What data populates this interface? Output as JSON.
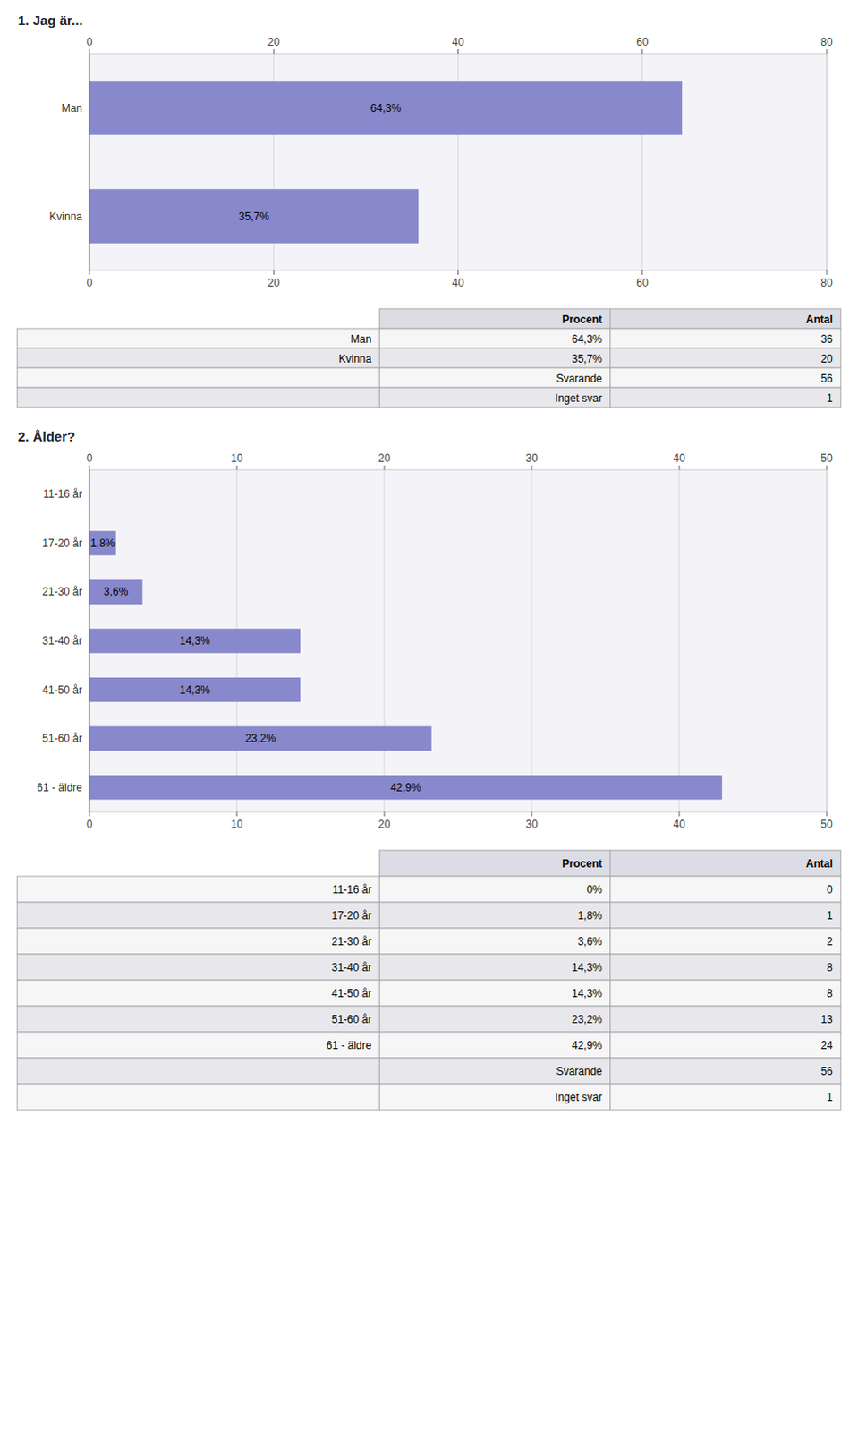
{
  "chart_data": [
    {
      "type": "bar",
      "orientation": "horizontal",
      "title": "1. Jag är...",
      "categories": [
        "Man",
        "Kvinna"
      ],
      "values": [
        64.3,
        35.7
      ],
      "value_labels": [
        "64,3%",
        "35,7%"
      ],
      "data_labels": true,
      "color": "#8888cc",
      "xlim": [
        0,
        80
      ],
      "xticks": [
        0,
        20,
        40,
        60,
        80
      ],
      "grid": true
    },
    {
      "type": "table",
      "columns": [
        "Procent",
        "Antal"
      ],
      "rows": [
        [
          "Man",
          "64,3%",
          "36"
        ],
        [
          "Kvinna",
          "35,7%",
          "20"
        ],
        [
          null,
          "Svarande",
          "56"
        ],
        [
          null,
          "Inget svar",
          "1"
        ]
      ]
    },
    {
      "type": "bar",
      "orientation": "horizontal",
      "title": "2. Ålder?",
      "categories": [
        "11-16 år",
        "17-20 år",
        "21-30 år",
        "31-40 år",
        "41-50 år",
        "51-60 år",
        "61 - äldre"
      ],
      "values": [
        0.0,
        1.8,
        3.6,
        14.3,
        14.3,
        23.2,
        42.9
      ],
      "value_labels": [
        null,
        "1,8%",
        "3,6%",
        "14,3%",
        "14,3%",
        "23,2%",
        "42,9%"
      ],
      "data_labels": true,
      "color": "#8888cc",
      "xlim": [
        0,
        50
      ],
      "xticks": [
        0,
        10,
        20,
        30,
        40,
        50
      ],
      "grid": true
    },
    {
      "type": "table",
      "columns": [
        "Procent",
        "Antal"
      ],
      "rows": [
        [
          "11-16 år",
          "0%",
          "0"
        ],
        [
          "17-20 år",
          "1,8%",
          "1"
        ],
        [
          "21-30 år",
          "3,6%",
          "2"
        ],
        [
          "31-40 år",
          "14,3%",
          "8"
        ],
        [
          "41-50 år",
          "14,3%",
          "8"
        ],
        [
          "51-60 år",
          "23,2%",
          "13"
        ],
        [
          "61 - äldre",
          "42,9%",
          "24"
        ],
        [
          null,
          "Svarande",
          "56"
        ],
        [
          null,
          "Inget svar",
          "1"
        ]
      ]
    }
  ]
}
